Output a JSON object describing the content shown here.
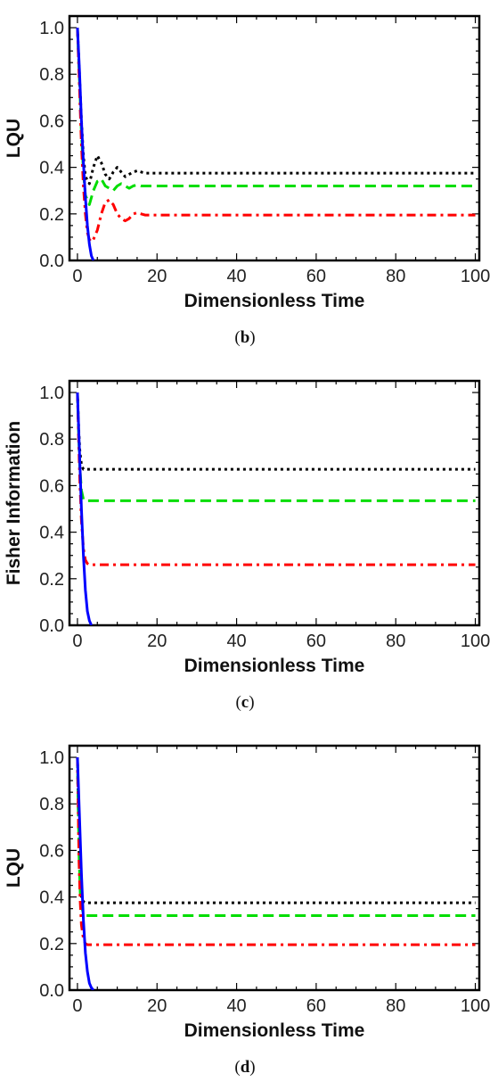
{
  "chart_data": [
    {
      "type": "line",
      "caption_letter": "b",
      "xlabel": "Dimensionless Time",
      "ylabel": "LQU",
      "xlim": [
        -2,
        101
      ],
      "ylim": [
        0,
        1.05
      ],
      "xticks": [
        "0",
        "20",
        "40",
        "60",
        "80",
        "100"
      ],
      "yticks": [
        "0.0",
        "0.2",
        "0.4",
        "0.6",
        "0.8",
        "1.0"
      ],
      "series": [
        {
          "color": "#0000ff",
          "dash": "solid",
          "x": [
            0,
            0.5,
            1,
            1.5,
            2,
            2.5,
            3,
            3.5,
            4
          ],
          "y": [
            1.0,
            0.82,
            0.6,
            0.42,
            0.27,
            0.15,
            0.07,
            0.02,
            0.0
          ]
        },
        {
          "color": "#000000",
          "dash": "dotted",
          "x": [
            0,
            0.5,
            1,
            1.5,
            2,
            3,
            4,
            5,
            6,
            7,
            8,
            9,
            10,
            11,
            12,
            13,
            14,
            15,
            16,
            17,
            18,
            20,
            30,
            40,
            50,
            60,
            70,
            80,
            90,
            100
          ],
          "y": [
            1.0,
            0.8,
            0.6,
            0.45,
            0.36,
            0.33,
            0.4,
            0.45,
            0.42,
            0.37,
            0.35,
            0.38,
            0.4,
            0.38,
            0.36,
            0.37,
            0.38,
            0.385,
            0.38,
            0.375,
            0.375,
            0.375,
            0.375,
            0.375,
            0.375,
            0.375,
            0.375,
            0.375,
            0.375,
            0.375
          ]
        },
        {
          "color": "#00dd00",
          "dash": "dashed",
          "x": [
            0,
            0.5,
            1,
            1.5,
            2,
            3,
            4,
            5,
            6,
            7,
            8,
            9,
            10,
            11,
            12,
            13,
            14,
            15,
            16,
            18,
            20,
            30,
            40,
            50,
            60,
            70,
            80,
            90,
            100
          ],
          "y": [
            1.0,
            0.78,
            0.55,
            0.38,
            0.28,
            0.24,
            0.3,
            0.34,
            0.35,
            0.32,
            0.31,
            0.3,
            0.32,
            0.33,
            0.32,
            0.31,
            0.32,
            0.325,
            0.32,
            0.32,
            0.32,
            0.32,
            0.32,
            0.32,
            0.32,
            0.32,
            0.32,
            0.32,
            0.32
          ]
        },
        {
          "color": "#ff0000",
          "dash": "dashdot",
          "x": [
            0,
            0.5,
            1,
            1.5,
            2,
            2.5,
            3,
            3.5,
            4,
            5,
            6,
            7,
            8,
            9,
            10,
            11,
            12,
            13,
            14,
            15,
            16,
            17,
            18,
            20,
            30,
            40,
            50,
            60,
            70,
            80,
            90,
            100
          ],
          "y": [
            1.0,
            0.75,
            0.5,
            0.32,
            0.2,
            0.12,
            0.09,
            0.08,
            0.09,
            0.13,
            0.2,
            0.25,
            0.26,
            0.24,
            0.2,
            0.18,
            0.17,
            0.18,
            0.2,
            0.205,
            0.2,
            0.195,
            0.195,
            0.195,
            0.195,
            0.195,
            0.195,
            0.195,
            0.195,
            0.195,
            0.195,
            0.195
          ]
        }
      ]
    },
    {
      "type": "line",
      "caption_letter": "c",
      "xlabel": "Dimensionless Time",
      "ylabel": "Fisher Information",
      "xlim": [
        -2,
        101
      ],
      "ylim": [
        0,
        1.05
      ],
      "xticks": [
        "0",
        "20",
        "40",
        "60",
        "80",
        "100"
      ],
      "yticks": [
        "0.0",
        "0.2",
        "0.4",
        "0.6",
        "0.8",
        "1.0"
      ],
      "series": [
        {
          "color": "#0000ff",
          "dash": "solid",
          "x": [
            0,
            0.5,
            1,
            1.5,
            2,
            2.5,
            3,
            3.5
          ],
          "y": [
            1.0,
            0.75,
            0.5,
            0.3,
            0.15,
            0.06,
            0.02,
            0.0
          ]
        },
        {
          "color": "#000000",
          "dash": "dotted",
          "x": [
            0,
            0.3,
            0.6,
            1,
            1.5,
            2,
            3,
            10,
            20,
            40,
            60,
            80,
            100
          ],
          "y": [
            1.0,
            0.85,
            0.75,
            0.69,
            0.67,
            0.67,
            0.67,
            0.67,
            0.67,
            0.67,
            0.67,
            0.67,
            0.67
          ]
        },
        {
          "color": "#00dd00",
          "dash": "dashed",
          "x": [
            0,
            0.3,
            0.6,
            1,
            1.5,
            2,
            3,
            10,
            20,
            40,
            60,
            80,
            100
          ],
          "y": [
            1.0,
            0.82,
            0.68,
            0.58,
            0.54,
            0.535,
            0.535,
            0.535,
            0.535,
            0.535,
            0.535,
            0.535,
            0.535
          ]
        },
        {
          "color": "#ff0000",
          "dash": "dashdot",
          "x": [
            0,
            0.3,
            0.6,
            1,
            1.5,
            2,
            2.5,
            3,
            4,
            10,
            20,
            40,
            60,
            80,
            100
          ],
          "y": [
            1.0,
            0.8,
            0.62,
            0.45,
            0.33,
            0.28,
            0.265,
            0.26,
            0.26,
            0.26,
            0.26,
            0.26,
            0.26,
            0.26,
            0.26
          ]
        }
      ]
    },
    {
      "type": "line",
      "caption_letter": "d",
      "xlabel": "Dimensionless Time",
      "ylabel": "LQU",
      "xlim": [
        -2,
        101
      ],
      "ylim": [
        0,
        1.05
      ],
      "xticks": [
        "0",
        "20",
        "40",
        "60",
        "80",
        "100"
      ],
      "yticks": [
        "0.0",
        "0.2",
        "0.4",
        "0.6",
        "0.8",
        "1.0"
      ],
      "series": [
        {
          "color": "#0000ff",
          "dash": "solid",
          "x": [
            0,
            0.5,
            1,
            1.5,
            2,
            2.5,
            3,
            3.5,
            4
          ],
          "y": [
            1.0,
            0.75,
            0.5,
            0.3,
            0.16,
            0.08,
            0.03,
            0.01,
            0.0
          ]
        },
        {
          "color": "#000000",
          "dash": "dotted",
          "x": [
            0,
            0.2,
            0.4,
            0.7,
            1,
            1.5,
            2,
            3,
            10,
            20,
            40,
            60,
            80,
            100
          ],
          "y": [
            1.0,
            0.8,
            0.6,
            0.45,
            0.4,
            0.38,
            0.375,
            0.375,
            0.375,
            0.375,
            0.375,
            0.375,
            0.375,
            0.375
          ]
        },
        {
          "color": "#00dd00",
          "dash": "dashed",
          "x": [
            0,
            0.2,
            0.4,
            0.7,
            1,
            1.5,
            2,
            3,
            10,
            20,
            40,
            60,
            80,
            100
          ],
          "y": [
            1.0,
            0.78,
            0.58,
            0.42,
            0.36,
            0.33,
            0.32,
            0.32,
            0.32,
            0.32,
            0.32,
            0.32,
            0.32,
            0.32
          ]
        },
        {
          "color": "#ff0000",
          "dash": "dashdot",
          "x": [
            0,
            0.2,
            0.4,
            0.7,
            1,
            1.5,
            2,
            2.5,
            3,
            10,
            20,
            40,
            60,
            80,
            100
          ],
          "y": [
            1.0,
            0.78,
            0.55,
            0.38,
            0.28,
            0.22,
            0.2,
            0.195,
            0.195,
            0.195,
            0.195,
            0.195,
            0.195,
            0.195,
            0.195
          ]
        }
      ]
    }
  ]
}
